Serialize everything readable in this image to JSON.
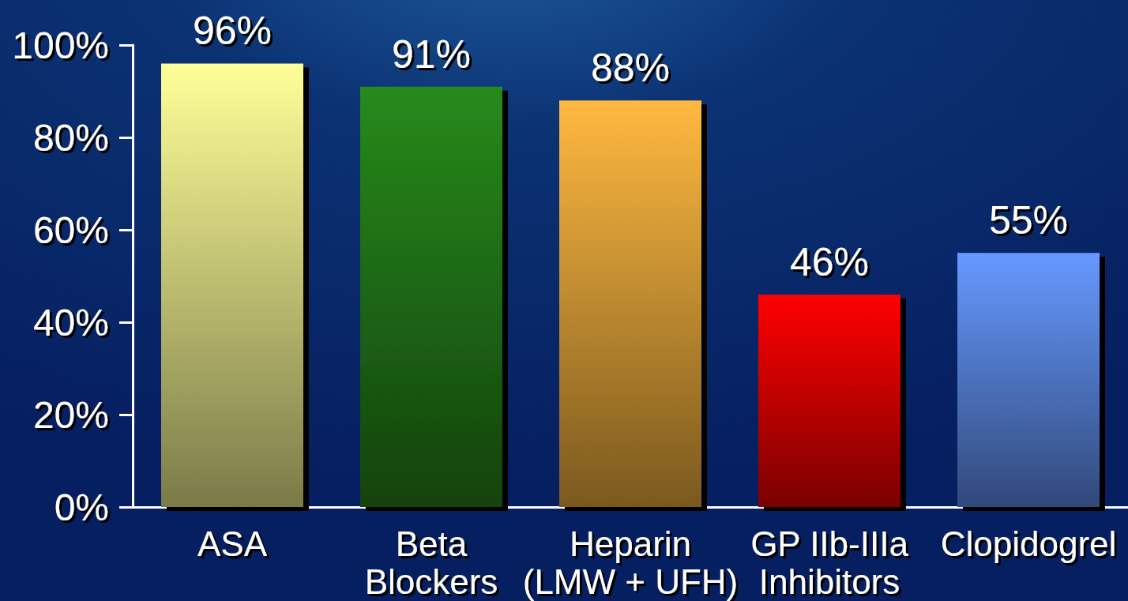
{
  "chart_data": {
    "type": "bar",
    "categories": [
      "ASA",
      "Beta\nBlockers",
      "Heparin\n(LMW + UFH)",
      "GP IIb-IIIa\nInhibitors",
      "Clopidogrel"
    ],
    "values": [
      96,
      91,
      88,
      46,
      55
    ],
    "colors": [
      "#ffff99",
      "#278a1b",
      "#ffb940",
      "#ff0000",
      "#6699ff"
    ],
    "value_labels": [
      "96%",
      "91%",
      "88%",
      "46%",
      "55%"
    ],
    "ylim": [
      0,
      100
    ],
    "yticks": [
      {
        "value": 0,
        "label": "0%"
      },
      {
        "value": 20,
        "label": "20%"
      },
      {
        "value": 40,
        "label": "40%"
      },
      {
        "value": 60,
        "label": "60%"
      },
      {
        "value": 80,
        "label": "80%"
      },
      {
        "value": 100,
        "label": "100%"
      }
    ]
  }
}
